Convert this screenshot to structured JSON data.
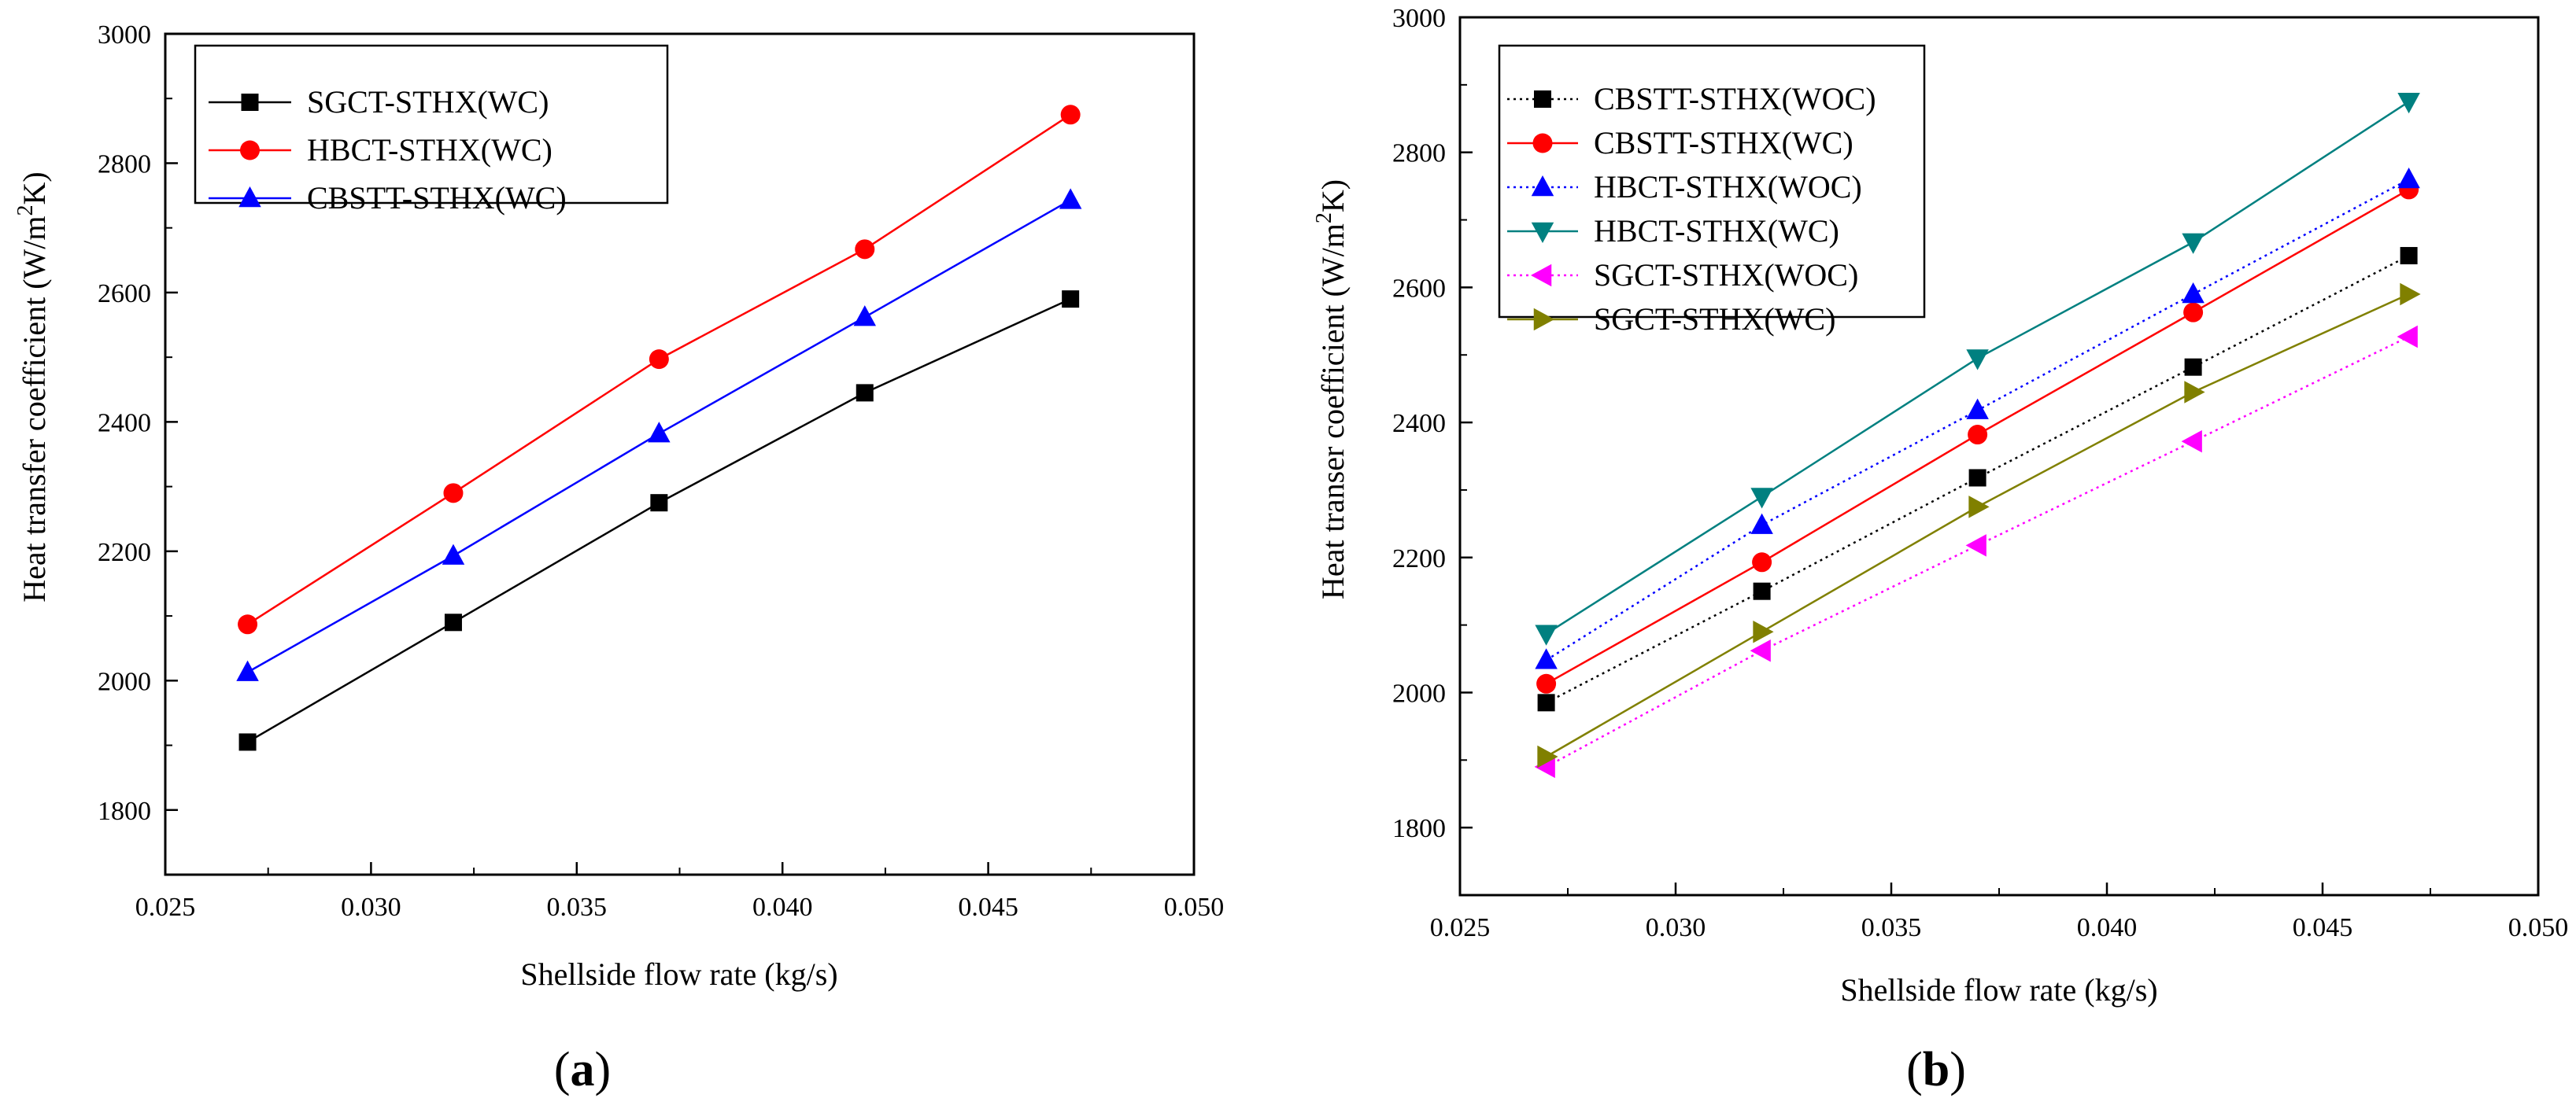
{
  "panels": [
    {
      "label_open": "(",
      "label_letter": "a",
      "label_close": ")"
    },
    {
      "label_open": "(",
      "label_letter": "b",
      "label_close": ")"
    }
  ],
  "chart_data": [
    {
      "type": "line",
      "title": "",
      "xlabel": "Shellside flow rate (kg/s)",
      "ylabel": "Heat transfer coefficient (W/m2K)",
      "ylabel_parts": [
        "Heat transfer coefficient (W/m",
        "2",
        "K)"
      ],
      "xlim": [
        0.025,
        0.05
      ],
      "ylim": [
        1700,
        3000
      ],
      "xticks": [
        0.025,
        0.03,
        0.035,
        0.04,
        0.045,
        0.05
      ],
      "xtick_labels": [
        "0.025",
        "0.030",
        "0.035",
        "0.040",
        "0.045",
        "0.050"
      ],
      "yticks": [
        1800,
        2000,
        2200,
        2400,
        2600,
        2800,
        3000
      ],
      "ytick_labels": [
        "1800",
        "2000",
        "2200",
        "2400",
        "2600",
        "2800",
        "3000"
      ],
      "grid": false,
      "legend_position": "top-left",
      "x": [
        0.027,
        0.032,
        0.037,
        0.042,
        0.047
      ],
      "series": [
        {
          "name": "SGCT-STHX(WC)",
          "color": "#000000",
          "marker": "square",
          "dash": "solid",
          "values": [
            1905,
            2090,
            2275,
            2445,
            2590
          ]
        },
        {
          "name": "HBCT-STHX(WC)",
          "color": "#ff0000",
          "marker": "circle",
          "dash": "solid",
          "values": [
            2087,
            2290,
            2497,
            2667,
            2875
          ]
        },
        {
          "name": "CBSTT-STHX(WC)",
          "color": "#0000ff",
          "marker": "triangle-up",
          "dash": "solid",
          "values": [
            2013,
            2193,
            2382,
            2562,
            2743
          ]
        }
      ]
    },
    {
      "type": "line",
      "title": "",
      "xlabel": "Shellside flow rate (kg/s)",
      "ylabel": "Heat transer coefficient (W/m2K)",
      "ylabel_parts": [
        "Heat transer coefficient (W/m",
        "2",
        "K)"
      ],
      "xlim": [
        0.025,
        0.05
      ],
      "ylim": [
        1700,
        3000
      ],
      "xticks": [
        0.025,
        0.03,
        0.035,
        0.04,
        0.045,
        0.05
      ],
      "xtick_labels": [
        "0.025",
        "0.030",
        "0.035",
        "0.040",
        "0.045",
        "0.050"
      ],
      "yticks": [
        1800,
        2000,
        2200,
        2400,
        2600,
        2800,
        3000
      ],
      "ytick_labels": [
        "1800",
        "2000",
        "2200",
        "2400",
        "2600",
        "2800",
        "3000"
      ],
      "grid": false,
      "legend_position": "top-left",
      "x": [
        0.027,
        0.032,
        0.037,
        0.042,
        0.047
      ],
      "series": [
        {
          "name": "CBSTT-STHX(WOC)",
          "color": "#000000",
          "marker": "square",
          "dash": "dotted",
          "values": [
            1985,
            2150,
            2318,
            2482,
            2647
          ]
        },
        {
          "name": "CBSTT-STHX(WC)",
          "color": "#ff0000",
          "marker": "circle",
          "dash": "solid",
          "values": [
            2013,
            2193,
            2382,
            2563,
            2745
          ]
        },
        {
          "name": "HBCT-STHX(WOC)",
          "color": "#0000ff",
          "marker": "triangle-up",
          "dash": "dotted",
          "values": [
            2048,
            2248,
            2418,
            2590,
            2760
          ]
        },
        {
          "name": "HBCT-STHX(WC)",
          "color": "#008080",
          "marker": "triangle-down",
          "dash": "solid",
          "values": [
            2087,
            2290,
            2495,
            2667,
            2875
          ]
        },
        {
          "name": "SGCT-STHX(WOC)",
          "color": "#ff00ff",
          "marker": "triangle-left",
          "dash": "dotted",
          "values": [
            1890,
            2062,
            2218,
            2372,
            2527
          ]
        },
        {
          "name": "SGCT-STHX(WC)",
          "color": "#808000",
          "marker": "triangle-right",
          "dash": "solid",
          "values": [
            1905,
            2090,
            2275,
            2445,
            2590
          ]
        }
      ]
    }
  ]
}
